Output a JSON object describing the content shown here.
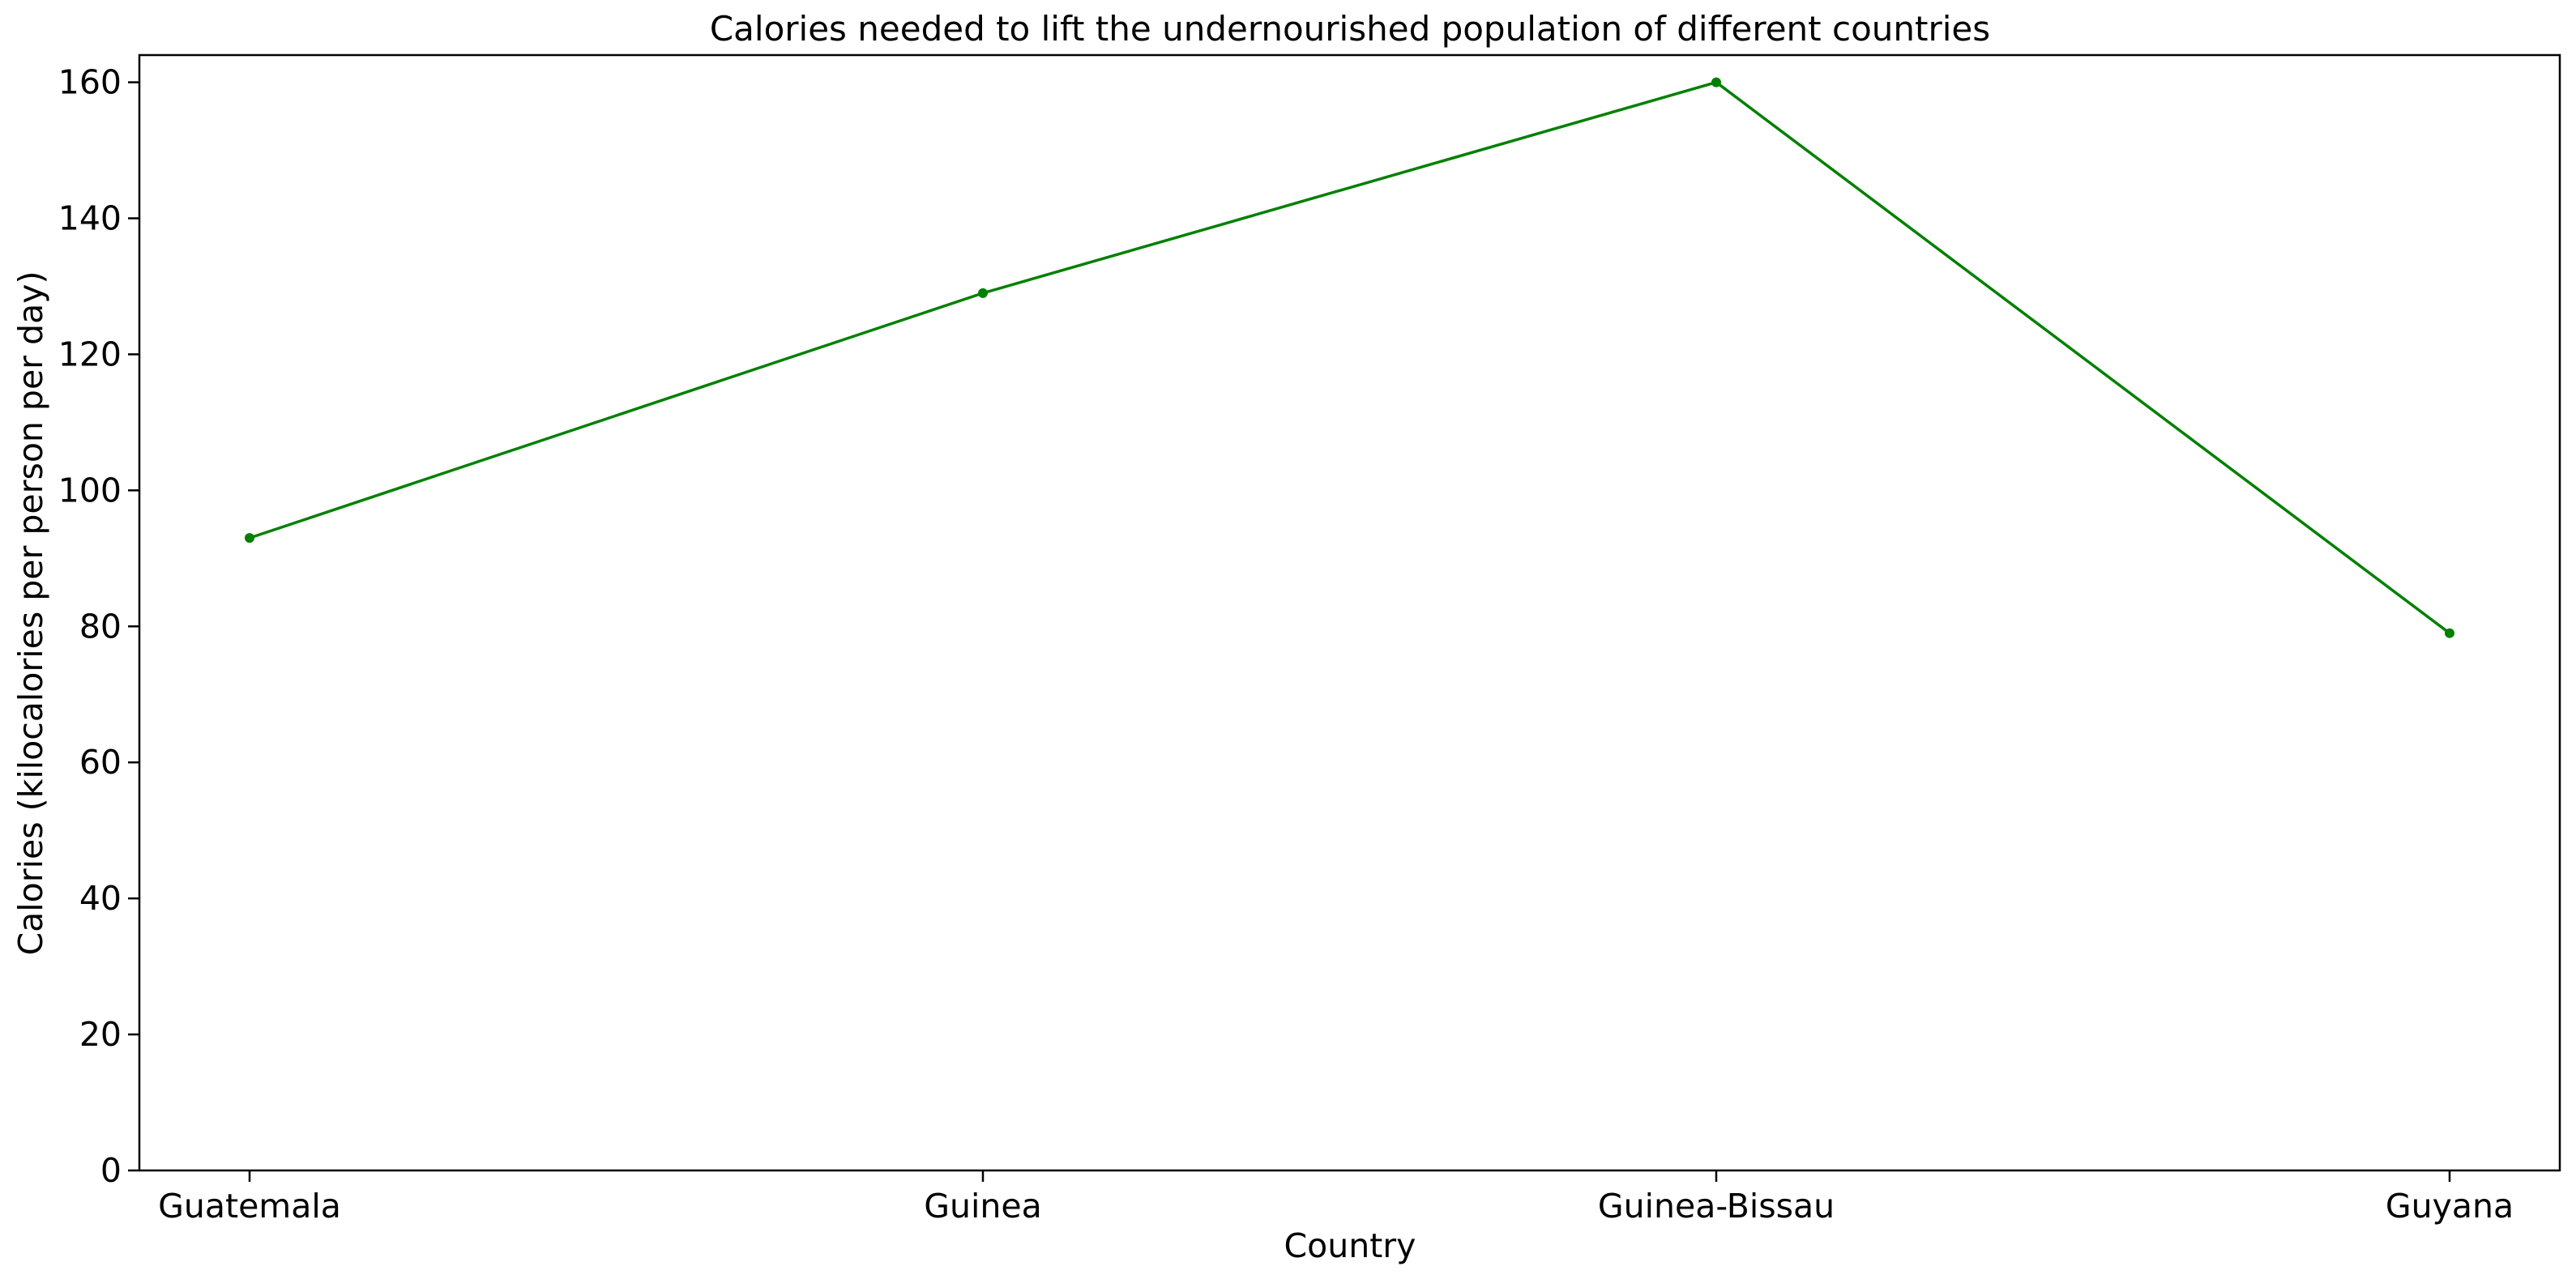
{
  "chart_data": {
    "type": "line",
    "title": "Calories needed to lift the undernourished population of different countries",
    "xlabel": "Country",
    "ylabel": "Calories (kilocalories per person per day)",
    "categories": [
      "Guatemala",
      "Guinea",
      "Guinea-Bissau",
      "Guyana"
    ],
    "series": [
      {
        "values": [
          93,
          129,
          160,
          79
        ],
        "color": "#008000"
      }
    ],
    "ylim": [
      0,
      164
    ],
    "yticks": [
      0,
      20,
      40,
      60,
      80,
      100,
      120,
      140,
      160
    ],
    "grid": false,
    "legend": "none"
  }
}
